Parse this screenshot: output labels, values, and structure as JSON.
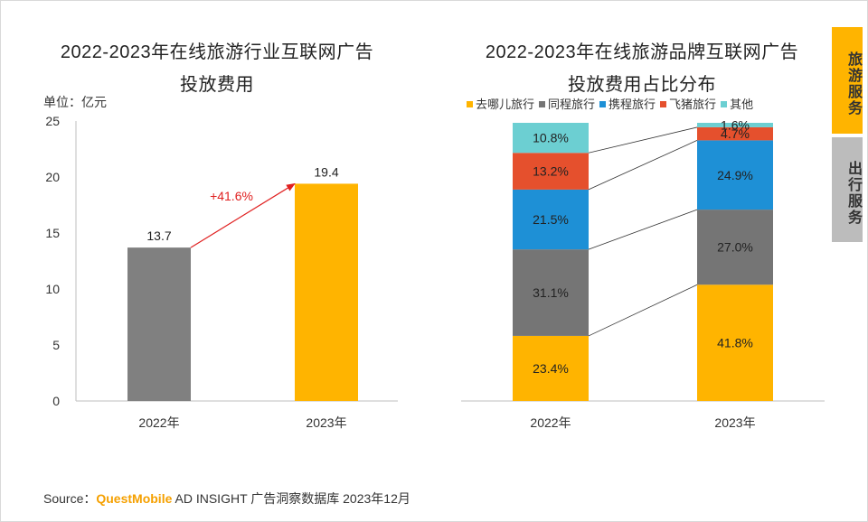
{
  "side_tabs": [
    {
      "label": "旅游服务",
      "color": "#ffb400"
    },
    {
      "label": "出行服务",
      "color": "#bcbcbc"
    }
  ],
  "source": {
    "prefix": "Source：",
    "brand": "QuestMobile",
    "text": "AD INSIGHT 广告洞察数据库 2023年12月"
  },
  "chart_data": [
    {
      "type": "bar",
      "title_line1": "2022-2023年在线旅游行业互联网广告",
      "title_line2": "投放费用",
      "unit_label": "单位：亿元",
      "categories": [
        "2022年",
        "2023年"
      ],
      "values": [
        13.7,
        19.4
      ],
      "value_labels": [
        "13.7",
        "19.4"
      ],
      "ylim": [
        0,
        25
      ],
      "yticks": [
        0,
        5,
        10,
        15,
        20,
        25
      ],
      "growth_label": "+41.6%",
      "colors": [
        "#808080",
        "#ffb400"
      ],
      "annotation_color": "#e02020"
    },
    {
      "type": "bar",
      "stacked": true,
      "title_line1": "2022-2023年在线旅游品牌互联网广告",
      "title_line2": "投放费用占比分布",
      "categories": [
        "2022年",
        "2023年"
      ],
      "series": [
        {
          "name": "去哪儿旅行",
          "color": "#ffb400",
          "values": [
            23.4,
            41.8
          ],
          "labels": [
            "23.4%",
            "41.8%"
          ]
        },
        {
          "name": "同程旅行",
          "color": "#757575",
          "values": [
            31.1,
            27.0
          ],
          "labels": [
            "31.1%",
            "27.0%"
          ]
        },
        {
          "name": "携程旅行",
          "color": "#1e90d6",
          "values": [
            21.5,
            24.9
          ],
          "labels": [
            "21.5%",
            "24.9%"
          ]
        },
        {
          "name": "飞猪旅行",
          "color": "#e5502d",
          "values": [
            13.2,
            4.7
          ],
          "labels": [
            "13.2%",
            "4.7%"
          ]
        },
        {
          "name": "其他",
          "color": "#6ccfd2",
          "values": [
            10.8,
            1.6
          ],
          "labels": [
            "10.8%",
            "1.6%"
          ]
        }
      ],
      "ylim": [
        0,
        100
      ]
    }
  ]
}
